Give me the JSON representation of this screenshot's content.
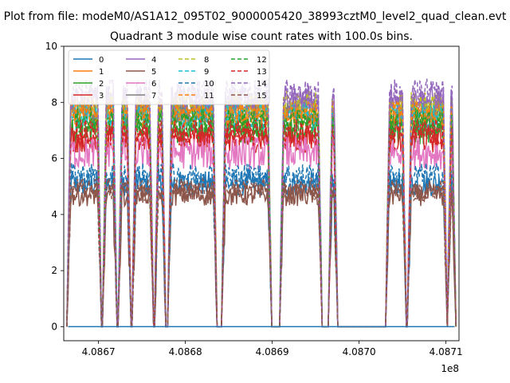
{
  "chart_data": {
    "type": "line",
    "title_lines": [
      "Plot from file: modeM0/AS1A12_095T02_9000005420_38993cztM0_level2_quad_clean.evt",
      "Quadrant 3 module wise count rates with 100.0s bins."
    ],
    "xlabel": "",
    "ylabel": "",
    "x_offset_label": "1e8",
    "xlim": [
      408666000,
      408711500
    ],
    "ylim": [
      -0.5,
      10
    ],
    "xticks": [
      408670000,
      408680000,
      408690000,
      408700000,
      408710000
    ],
    "xtick_labels": [
      "4.0867",
      "4.0868",
      "4.0869",
      "4.0870",
      "4.0871"
    ],
    "yticks": [
      0,
      2,
      4,
      6,
      8,
      10
    ],
    "ytick_labels": [
      "0",
      "2",
      "4",
      "6",
      "8",
      "10"
    ],
    "legend_position": "top-left",
    "legend_columns": 4,
    "segments": [
      [
        408666500,
        408670200
      ],
      [
        408670600,
        408672000
      ],
      [
        408672400,
        408673600
      ],
      [
        408674000,
        408676200
      ],
      [
        408676600,
        408677600
      ],
      [
        408678100,
        408683500
      ],
      [
        408684300,
        408689800
      ],
      [
        408691000,
        408695600
      ],
      [
        408696600,
        408697400
      ],
      [
        408703200,
        408705300
      ],
      [
        408705700,
        408710000
      ],
      [
        408710300,
        408711000
      ]
    ],
    "series": [
      {
        "name": "0",
        "color": "#1f77b4",
        "dash": "solid",
        "level": 5.1,
        "noise": 0.45
      },
      {
        "name": "1",
        "color": "#ff7f0e",
        "dash": "solid",
        "level": 7.6,
        "noise": 0.55
      },
      {
        "name": "2",
        "color": "#2ca02c",
        "dash": "solid",
        "level": 7.0,
        "noise": 0.5
      },
      {
        "name": "3",
        "color": "#d62728",
        "dash": "solid",
        "level": 6.7,
        "noise": 0.5
      },
      {
        "name": "4",
        "color": "#9467bd",
        "dash": "solid",
        "level": 8.1,
        "noise": 0.5
      },
      {
        "name": "5",
        "color": "#8c564b",
        "dash": "solid",
        "level": 4.7,
        "noise": 0.4
      },
      {
        "name": "6",
        "color": "#e377c2",
        "dash": "solid",
        "level": 6.2,
        "noise": 0.6
      },
      {
        "name": "7",
        "color": "#7f7f7f",
        "dash": "solid",
        "level": 7.7,
        "noise": 0.45
      },
      {
        "name": "8",
        "color": "#bcbd22",
        "dash": "dashed",
        "level": 7.9,
        "noise": 0.5
      },
      {
        "name": "9",
        "color": "#17becf",
        "dash": "dashed",
        "level": 7.5,
        "noise": 0.5
      },
      {
        "name": "10",
        "color": "#1f77b4",
        "dash": "dashed",
        "level": 5.4,
        "noise": 0.45
      },
      {
        "name": "11",
        "color": "#ff7f0e",
        "dash": "dashed",
        "level": 7.6,
        "noise": 0.5
      },
      {
        "name": "12",
        "color": "#2ca02c",
        "dash": "dashed",
        "level": 7.3,
        "noise": 0.5
      },
      {
        "name": "13",
        "color": "#d62728",
        "dash": "dashed",
        "level": 6.9,
        "noise": 0.5
      },
      {
        "name": "14",
        "color": "#9467bd",
        "dash": "dashed",
        "level": 8.3,
        "noise": 0.55
      },
      {
        "name": "15",
        "color": "#8c564b",
        "dash": "dashed",
        "level": 4.9,
        "noise": 0.4
      }
    ],
    "zero_series_name": "0"
  }
}
